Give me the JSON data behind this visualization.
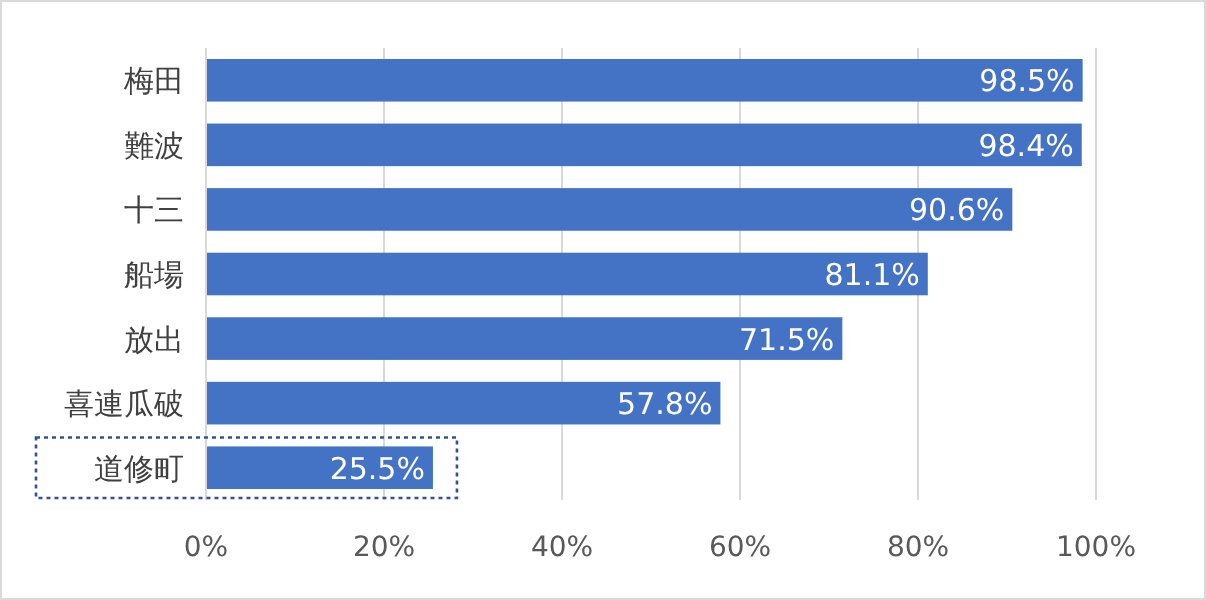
{
  "chart_data": {
    "type": "bar",
    "orientation": "horizontal",
    "categories": [
      "梅田",
      "難波",
      "十三",
      "船場",
      "放出",
      "喜連瓜破",
      "道修町"
    ],
    "values": [
      98.5,
      98.4,
      90.6,
      81.1,
      71.5,
      57.8,
      25.5
    ],
    "value_labels": [
      "98.5%",
      "98.4%",
      "90.6%",
      "81.1%",
      "71.5%",
      "57.8%",
      "25.5%"
    ],
    "color": "#4472c4",
    "xlim": [
      0,
      100
    ],
    "xticks": [
      {
        "value": 0,
        "label": "0%"
      },
      {
        "value": 20,
        "label": "20%"
      },
      {
        "value": 40,
        "label": "40%"
      },
      {
        "value": 60,
        "label": "60%"
      },
      {
        "value": 80,
        "label": "80%"
      },
      {
        "value": 100,
        "label": "100%"
      }
    ],
    "grid": "x"
  }
}
